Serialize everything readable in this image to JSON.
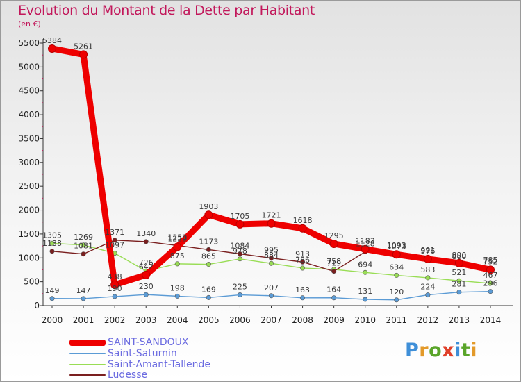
{
  "title": "Evolution du Montant de la Dette par Habitant",
  "unit_label": "(en €)",
  "logo": {
    "text": "Proxiti",
    "letter_colors": [
      "#3f8fd8",
      "#e39a2a",
      "#5aa52a",
      "#e0402a",
      "#3f8fd8",
      "#5aa52a",
      "#e39a2a"
    ]
  },
  "chart_data": {
    "type": "line",
    "x": [
      "2000",
      "2001",
      "2002",
      "2003",
      "2004",
      "2005",
      "2006",
      "2007",
      "2008",
      "2009",
      "2010",
      "2011",
      "2012",
      "2013",
      "2014"
    ],
    "ylim": [
      0,
      5500
    ],
    "yticks": [
      0,
      500,
      1000,
      1500,
      2000,
      2500,
      3000,
      3500,
      4000,
      4500,
      5000,
      5500
    ],
    "grid": false,
    "legend_position": "bottom-left",
    "series": [
      {
        "name": "SAINT-SANDOUX",
        "color": "#ee0000",
        "values": [
          5384,
          5261,
          438,
          642,
          1229,
          1903,
          1705,
          1721,
          1618,
          1295,
          1183,
          1073,
          976,
          890,
          752
        ]
      },
      {
        "name": "Saint-Saturnin",
        "color": "#5b9bd5",
        "values": [
          149,
          147,
          190,
          230,
          198,
          169,
          225,
          207,
          163,
          164,
          131,
          120,
          224,
          281,
          296
        ]
      },
      {
        "name": "Saint-Amant-Tallende",
        "color": "#99dd55",
        "values": [
          1305,
          1269,
          1097,
          726,
          875,
          865,
          978,
          884,
          786,
          758,
          694,
          634,
          583,
          521,
          467
        ]
      },
      {
        "name": "Ludesse",
        "color": "#7a1f1f",
        "values": [
          1138,
          1081,
          1371,
          1340,
          1259,
          1173,
          1084,
          995,
          913,
          719,
          1128,
          1093,
          991,
          860,
          785
        ]
      }
    ]
  }
}
